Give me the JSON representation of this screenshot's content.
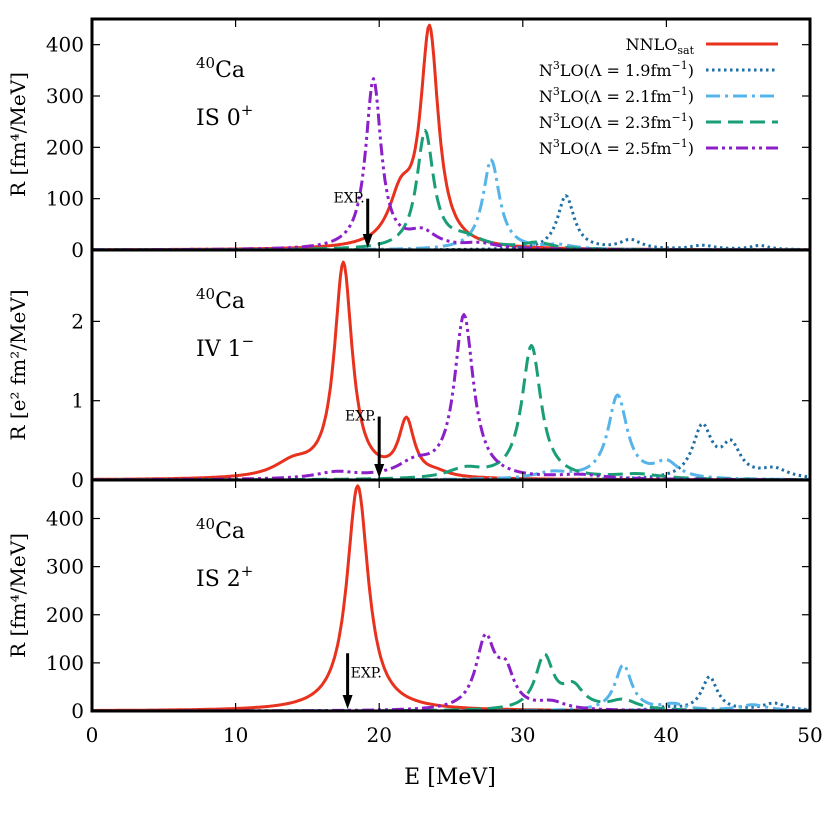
{
  "chart_data": {
    "type": "line",
    "xlabel": "E [MeV]",
    "xlim": [
      0,
      50
    ],
    "xticks": [
      0,
      10,
      20,
      30,
      40,
      50
    ],
    "colors": {
      "NNLOsat": "#e8321e",
      "N3LO_19": "#1f6fa5",
      "N3LO_21": "#56b4e9",
      "N3LO_23": "#1a9e77",
      "N3LO_25": "#8b1fc8"
    },
    "legend": {
      "placement": "top-right",
      "entries": [
        {
          "key": "NNLOsat",
          "main": "NNLO",
          "sub": "sat",
          "rest": "",
          "style": "solid",
          "color": "#e8321e"
        },
        {
          "key": "N3LO_19",
          "main": "N",
          "sup": "3",
          "rest": "LO(Λ = 1.9fm",
          "sup2": "−1",
          "tail": ")",
          "style": "dotted",
          "color": "#1f6fa5"
        },
        {
          "key": "N3LO_21",
          "main": "N",
          "sup": "3",
          "rest": "LO(Λ = 2.1fm",
          "sup2": "−1",
          "tail": ")",
          "style": "dashdot",
          "color": "#56b4e9"
        },
        {
          "key": "N3LO_23",
          "main": "N",
          "sup": "3",
          "rest": "LO(Λ = 2.3fm",
          "sup2": "−1",
          "tail": ")",
          "style": "dashed",
          "color": "#1a9e77"
        },
        {
          "key": "N3LO_25",
          "main": "N",
          "sup": "3",
          "rest": "LO(Λ = 2.5fm",
          "sup2": "−1",
          "tail": ")",
          "style": "dashdotdot",
          "color": "#8b1fc8"
        }
      ]
    },
    "panels": [
      {
        "id": "is0",
        "ylabel": "R [fm⁴/MeV]",
        "ylim": [
          0,
          450
        ],
        "yticks": [
          0,
          100,
          200,
          300,
          400
        ],
        "nucleus_mass": "40",
        "nucleus": "Ca",
        "mode": "IS 0",
        "mode_sup": "+",
        "exp_label": "EXP.",
        "exp_energy": 19.2,
        "exp_arrow_top": 100,
        "series": [
          {
            "key": "NNLOsat",
            "peaks": [
              [
                23.5,
                420,
                0.75
              ],
              [
                21.5,
                90,
                1.0
              ]
            ],
            "base": 0
          },
          {
            "key": "N3LO_19",
            "peaks": [
              [
                33.0,
                105,
                0.7
              ],
              [
                37.5,
                18,
                0.9
              ],
              [
                42.5,
                8,
                1.0
              ],
              [
                46.5,
                8,
                0.8
              ]
            ],
            "base": 0
          },
          {
            "key": "N3LO_21",
            "peaks": [
              [
                27.8,
                175,
                0.7
              ],
              [
                32.5,
                8,
                1.2
              ]
            ],
            "base": 0
          },
          {
            "key": "N3LO_23",
            "peaks": [
              [
                23.2,
                228,
                0.7
              ],
              [
                26.0,
                20,
                1.5
              ],
              [
                31.0,
                12,
                1.2
              ]
            ],
            "base": 0
          },
          {
            "key": "N3LO_25",
            "peaks": [
              [
                19.6,
                330,
                0.65
              ],
              [
                23.0,
                30,
                1.2
              ],
              [
                27.0,
                10,
                1.5
              ]
            ],
            "base": 0
          }
        ]
      },
      {
        "id": "iv1",
        "ylabel": "R [e² fm²/MeV]",
        "ylim": [
          0,
          2.9
        ],
        "yticks": [
          0,
          1,
          2
        ],
        "nucleus_mass": "40",
        "nucleus": "Ca",
        "mode": "IV 1",
        "mode_sup": "−",
        "exp_label": "EXP.",
        "exp_energy": 20.0,
        "exp_arrow_top": 0.8,
        "series": [
          {
            "key": "NNLOsat",
            "peaks": [
              [
                17.5,
                2.7,
                0.75
              ],
              [
                21.9,
                0.7,
                0.65
              ],
              [
                14.0,
                0.18,
                1.6
              ],
              [
                24.0,
                0.05,
                1.0
              ]
            ],
            "base": 0
          },
          {
            "key": "N3LO_19",
            "peaks": [
              [
                42.5,
                0.65,
                0.8
              ],
              [
                44.5,
                0.4,
                0.8
              ],
              [
                47.5,
                0.12,
                1.2
              ]
            ],
            "base": 0
          },
          {
            "key": "N3LO_21",
            "peaks": [
              [
                36.6,
                1.05,
                0.8
              ],
              [
                40.0,
                0.2,
                1.0
              ],
              [
                32.0,
                0.08,
                1.5
              ]
            ],
            "base": 0
          },
          {
            "key": "N3LO_23",
            "peaks": [
              [
                30.6,
                1.68,
                0.8
              ],
              [
                26.0,
                0.12,
                1.5
              ],
              [
                38.0,
                0.06,
                2.0
              ]
            ],
            "base": 0
          },
          {
            "key": "N3LO_25",
            "peaks": [
              [
                25.9,
                2.05,
                0.8
              ],
              [
                22.5,
                0.18,
                1.5
              ],
              [
                17.0,
                0.08,
                1.8
              ],
              [
                34.0,
                0.05,
                2.0
              ]
            ],
            "base": 0
          }
        ]
      },
      {
        "id": "is2",
        "ylabel": "R [fm⁴/MeV]",
        "ylim": [
          0,
          480
        ],
        "yticks": [
          0,
          100,
          200,
          300,
          400
        ],
        "nucleus_mass": "40",
        "nucleus": "Ca",
        "mode": "IS 2",
        "mode_sup": "+",
        "exp_label": "EXP.",
        "exp_energy": 17.8,
        "exp_arrow_top": 120,
        "series": [
          {
            "key": "NNLOsat",
            "peaks": [
              [
                18.5,
                468,
                0.9
              ]
            ],
            "base": 0
          },
          {
            "key": "N3LO_19",
            "peaks": [
              [
                43.0,
                70,
                0.65
              ],
              [
                47.5,
                15,
                1.0
              ],
              [
                40.0,
                6,
                1.0
              ]
            ],
            "base": 0
          },
          {
            "key": "N3LO_21",
            "peaks": [
              [
                37.0,
                95,
                0.7
              ],
              [
                40.5,
                12,
                1.0
              ],
              [
                46.0,
                12,
                1.2
              ]
            ],
            "base": 0
          },
          {
            "key": "N3LO_23",
            "peaks": [
              [
                31.5,
                110,
                0.75
              ],
              [
                33.5,
                45,
                0.9
              ],
              [
                37.0,
                20,
                1.2
              ]
            ],
            "base": 0
          },
          {
            "key": "N3LO_25",
            "peaks": [
              [
                27.4,
                145,
                0.8
              ],
              [
                28.8,
                70,
                0.7
              ],
              [
                32.0,
                15,
                1.2
              ]
            ],
            "base": 0
          }
        ]
      }
    ]
  }
}
